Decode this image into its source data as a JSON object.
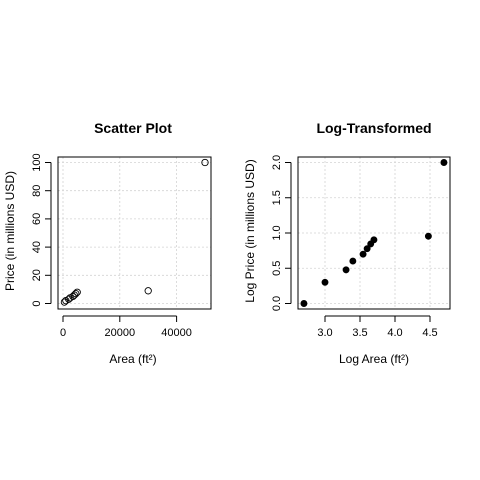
{
  "chart_data": [
    {
      "type": "scatter",
      "title": "Scatter Plot",
      "xlabel": "Area (ft²)",
      "ylabel": "Price (in millions USD)",
      "xlim": [
        0,
        50000
      ],
      "ylim": [
        0,
        100
      ],
      "xticks": [
        0,
        20000,
        40000
      ],
      "xtick_labels": [
        "0",
        "20000",
        "40000"
      ],
      "yticks": [
        0,
        20,
        40,
        60,
        80,
        100
      ],
      "ytick_labels": [
        "0",
        "20",
        "40",
        "60",
        "80",
        "100"
      ],
      "grid": true,
      "marker": "open-circle",
      "x": [
        500,
        1000,
        2000,
        2500,
        3500,
        4000,
        4500,
        5000,
        30000,
        50000
      ],
      "y": [
        1,
        2,
        3,
        4,
        5,
        6,
        7,
        8,
        9,
        100
      ]
    },
    {
      "type": "scatter",
      "title": "Log-Transformed",
      "xlabel": "Log Area (ft²)",
      "ylabel": "Log Price (in millions USD)",
      "xlim": [
        2.7,
        4.7
      ],
      "ylim": [
        0,
        2
      ],
      "xticks": [
        3.0,
        3.5,
        4.0,
        4.5
      ],
      "xtick_labels": [
        "3.0",
        "3.5",
        "4.0",
        "4.5"
      ],
      "yticks": [
        0.0,
        0.5,
        1.0,
        1.5,
        2.0
      ],
      "ytick_labels": [
        "0.0",
        "0.5",
        "1.0",
        "1.5",
        "2.0"
      ],
      "grid": true,
      "marker": "filled-circle",
      "x": [
        2.699,
        3.0,
        3.301,
        3.398,
        3.544,
        3.602,
        3.653,
        3.699,
        4.477,
        4.699
      ],
      "y": [
        0.0,
        0.301,
        0.477,
        0.602,
        0.699,
        0.778,
        0.845,
        0.903,
        0.954,
        2.0
      ]
    }
  ]
}
